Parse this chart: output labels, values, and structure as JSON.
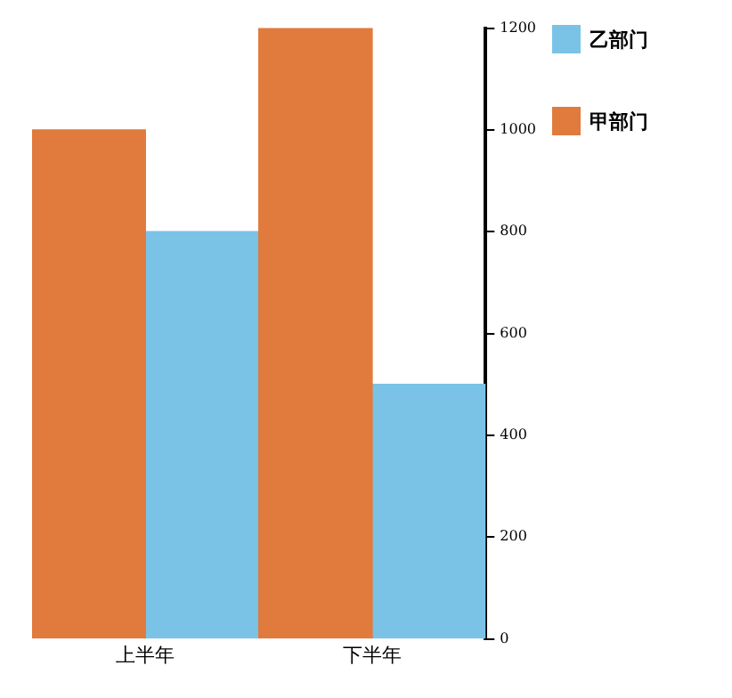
{
  "chart_data": {
    "type": "bar",
    "categories": [
      "上半年",
      "下半年"
    ],
    "series": [
      {
        "name": "甲部门",
        "color": "#e07b3d",
        "values": [
          1000,
          1200
        ]
      },
      {
        "name": "乙部门",
        "color": "#7ac3e6",
        "values": [
          800,
          500
        ]
      }
    ],
    "ylim": [
      0,
      1200
    ],
    "yticks": [
      0,
      200,
      400,
      600,
      800,
      1000,
      1200
    ],
    "grid": false,
    "legend": "top right"
  }
}
